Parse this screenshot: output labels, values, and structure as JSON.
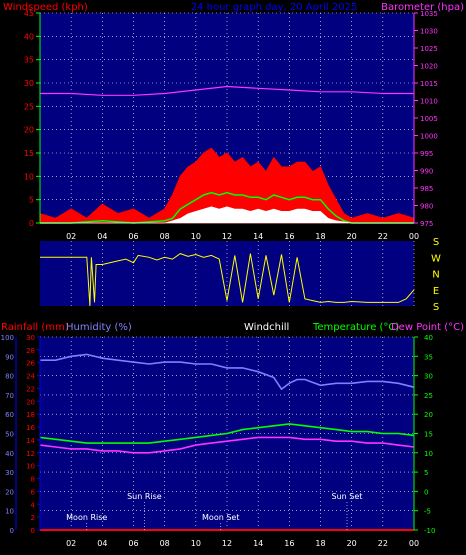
{
  "header": {
    "windspeed_label": "Windspeed (kph)",
    "title": "24 hour graph day, 20 April 2025",
    "barometer_label": "Barometer (hpa)"
  },
  "colors": {
    "windspeed": "#ff0000",
    "gust": "#ff0000",
    "avg_wind": "#00ff00",
    "wind_white": "#ffffff",
    "barometer": "#ff33ff",
    "wind_dir": "#ffff00",
    "humidity": "#8080ff",
    "temperature": "#00ff00",
    "dewpoint": "#ff33ff",
    "rainfall": "#ff0000",
    "axis_blue": "#0000ff",
    "axis_green": "#00ff00",
    "background": "#000080"
  },
  "hour_ticks": [
    "02",
    "04",
    "06",
    "08",
    "10",
    "12",
    "14",
    "16",
    "18",
    "20",
    "22",
    "00"
  ],
  "compass": [
    "S",
    "E",
    "N",
    "W",
    "S"
  ],
  "astro": {
    "moon_rise": "Moon Rise",
    "sun_rise": "Sun Rise",
    "moon_set": "Moon Set",
    "sun_set": "Sun Set"
  },
  "lower_header": {
    "rainfall": "Rainfall (mm)",
    "humidity": "Humidity (%)",
    "windchill": "Windchill",
    "temperature": "Temperature (°C)",
    "dewpoint": "Dew Point (°C)"
  },
  "chart_data": [
    {
      "type": "area",
      "y_left": {
        "ylim": [
          0,
          45
        ],
        "ticks": [
          0,
          5,
          10,
          15,
          20,
          25,
          30,
          35,
          40,
          45
        ]
      },
      "y_right": {
        "ylim": [
          975,
          1035
        ],
        "ticks": [
          975,
          980,
          985,
          990,
          995,
          1000,
          1005,
          1010,
          1015,
          1020,
          1025,
          1030,
          1035
        ]
      },
      "x": {
        "xlim": [
          0,
          24
        ]
      },
      "series": [
        {
          "key": "gust",
          "x": [
            0,
            1,
            2,
            3,
            4,
            5,
            6,
            7,
            8,
            8.5,
            9,
            9.5,
            10,
            10.5,
            11,
            11.5,
            12,
            12.5,
            13,
            13.5,
            14,
            14.5,
            15,
            15.5,
            16,
            16.5,
            17,
            17.5,
            18,
            18.5,
            19,
            19.5,
            20,
            21,
            22,
            23,
            24
          ],
          "y": [
            2,
            1,
            3,
            1,
            4,
            2,
            3,
            1,
            3,
            6,
            10,
            12,
            13,
            15,
            16,
            14,
            15,
            13,
            14,
            12,
            13,
            11,
            14,
            12,
            12,
            13,
            13,
            11,
            12,
            8,
            5,
            2,
            1,
            2,
            1,
            2,
            1
          ]
        },
        {
          "key": "avg_wind",
          "x": [
            0,
            2,
            4,
            6,
            8,
            8.5,
            9,
            9.5,
            10,
            10.5,
            11,
            11.5,
            12,
            12.5,
            13,
            13.5,
            14,
            14.5,
            15,
            15.5,
            16,
            16.5,
            17,
            17.5,
            18,
            18.5,
            19,
            19.5,
            20,
            22,
            24
          ],
          "y": [
            0,
            0,
            0.5,
            0,
            0.5,
            1,
            3,
            4,
            5,
            6,
            6.5,
            6,
            6.5,
            6,
            6,
            5.5,
            5.5,
            5,
            6,
            5.5,
            5,
            5.5,
            5.5,
            5,
            5,
            3,
            1.5,
            0.5,
            0,
            0,
            0
          ]
        },
        {
          "key": "wind_white",
          "x": [
            0,
            2,
            4,
            6,
            8,
            8.5,
            9,
            9.5,
            10,
            10.5,
            11,
            11.5,
            12,
            12.5,
            13,
            13.5,
            14,
            14.5,
            15,
            15.5,
            16,
            16.5,
            17,
            17.5,
            18,
            18.5,
            19,
            20,
            24
          ],
          "y": [
            0,
            0,
            0,
            0,
            0,
            0.5,
            1,
            2,
            2.5,
            3,
            3.5,
            3,
            3.5,
            3,
            3,
            2.5,
            3,
            2.5,
            3,
            2.5,
            2.5,
            3,
            3,
            2.5,
            2.5,
            1,
            0.5,
            0,
            0
          ]
        },
        {
          "key": "barometer",
          "x": [
            0,
            2,
            4,
            6,
            8,
            10,
            12,
            14,
            16,
            18,
            20,
            22,
            24
          ],
          "y": [
            1012,
            1012,
            1011.5,
            1011.5,
            1012,
            1013,
            1014,
            1013.5,
            1013,
            1012.5,
            1012.5,
            1012,
            1012
          ]
        }
      ]
    },
    {
      "type": "line",
      "key": "wind_direction",
      "ylim": [
        0,
        360
      ],
      "x": [
        0,
        3,
        3.2,
        3.3,
        3.5,
        3.6,
        4,
        5,
        5.5,
        6,
        6.3,
        7,
        7.5,
        8,
        8.5,
        9,
        9.5,
        10,
        10.5,
        11,
        11.5,
        12,
        12.5,
        13,
        13.5,
        14,
        14.5,
        15,
        15.5,
        16,
        16.5,
        17,
        17.5,
        18,
        18.5,
        19,
        19.5,
        20,
        21,
        22,
        23,
        23.5,
        24
      ],
      "y": [
        270,
        270,
        0,
        270,
        20,
        230,
        230,
        250,
        260,
        240,
        280,
        270,
        255,
        270,
        260,
        290,
        275,
        285,
        270,
        280,
        260,
        30,
        280,
        20,
        290,
        40,
        280,
        60,
        285,
        20,
        270,
        40,
        30,
        20,
        25,
        20,
        20,
        25,
        20,
        20,
        20,
        40,
        90
      ]
    },
    {
      "type": "line",
      "y_left_rain": {
        "ylim": [
          0,
          100
        ],
        "ticks": [
          0,
          10,
          20,
          30,
          40,
          50,
          60,
          70,
          80,
          90,
          100
        ]
      },
      "y_left_humidity": {
        "ylim": [
          0,
          30
        ],
        "ticks": [
          0,
          2,
          4,
          6,
          8,
          10,
          12,
          14,
          16,
          18,
          20,
          22,
          24,
          26,
          28,
          30
        ]
      },
      "y_right": {
        "ylim": [
          -10,
          40
        ],
        "ticks": [
          -10,
          -5,
          0,
          5,
          10,
          15,
          20,
          25,
          30,
          35,
          40
        ]
      },
      "x": {
        "xlim": [
          0,
          24
        ]
      },
      "series": [
        {
          "key": "humidity",
          "x": [
            0,
            1,
            2,
            3,
            4,
            5,
            6,
            7,
            8,
            9,
            10,
            11,
            12,
            13,
            14,
            15,
            15.5,
            16,
            16.5,
            17,
            18,
            19,
            20,
            21,
            22,
            23,
            24
          ],
          "y": [
            88,
            88,
            90,
            91,
            89,
            88,
            87,
            86,
            87,
            87,
            86,
            86,
            84,
            84,
            82,
            79,
            73,
            76,
            78,
            78,
            75,
            76,
            76,
            77,
            77,
            76,
            74
          ]
        },
        {
          "key": "temperature",
          "x": [
            0,
            1,
            2,
            3,
            4,
            5,
            6,
            7,
            8,
            9,
            10,
            11,
            12,
            13,
            14,
            15,
            16,
            17,
            18,
            19,
            20,
            21,
            22,
            23,
            24
          ],
          "y": [
            14,
            13.5,
            13,
            12.5,
            12.5,
            12.5,
            12.5,
            12.5,
            13,
            13.5,
            14,
            14.5,
            15,
            16,
            16.5,
            17,
            17.5,
            17,
            16.5,
            16,
            15.5,
            15.5,
            15,
            15,
            14.5
          ]
        },
        {
          "key": "dewpoint",
          "x": [
            0,
            1,
            2,
            3,
            4,
            5,
            6,
            7,
            8,
            9,
            10,
            11,
            12,
            13,
            14,
            15,
            16,
            17,
            18,
            19,
            20,
            21,
            22,
            23,
            24
          ],
          "y": [
            12,
            11.5,
            11,
            11,
            10.5,
            10.5,
            10,
            10,
            10.5,
            11,
            12,
            12.5,
            13,
            13.5,
            14,
            14,
            14,
            13.5,
            13.5,
            13,
            13,
            12.5,
            12.5,
            12,
            11.5
          ]
        },
        {
          "key": "rainfall",
          "x": [
            0,
            24
          ],
          "y": [
            0,
            0
          ]
        }
      ],
      "astro_times": {
        "moon_rise": 3.0,
        "sun_rise": 6.7,
        "moon_set": 11.6,
        "sun_set": 19.7
      }
    }
  ]
}
